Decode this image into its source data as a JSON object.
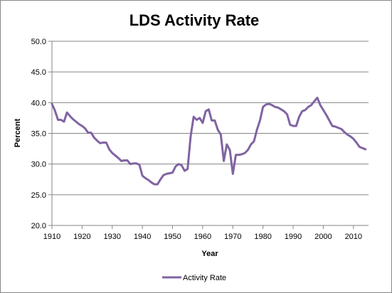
{
  "chart_data": {
    "type": "line",
    "title": "LDS Activity Rate",
    "xlabel": "Year",
    "ylabel": "Percent",
    "xlim": [
      1910,
      2015
    ],
    "ylim": [
      20,
      50
    ],
    "xticks": [
      "1910",
      "1920",
      "1930",
      "1940",
      "1950",
      "1960",
      "1970",
      "1980",
      "1990",
      "2000",
      "2010"
    ],
    "yticks": [
      "20.0",
      "25.0",
      "30.0",
      "35.0",
      "40.0",
      "45.0",
      "50.0"
    ],
    "grid": true,
    "legend": "bottom",
    "series": [
      {
        "name": "Activity Rate",
        "color": "#8064A2",
        "x": [
          1910,
          1911,
          1912,
          1913,
          1914,
          1915,
          1916,
          1917,
          1918,
          1919,
          1920,
          1921,
          1922,
          1923,
          1924,
          1925,
          1926,
          1927,
          1928,
          1929,
          1930,
          1931,
          1932,
          1933,
          1934,
          1935,
          1936,
          1937,
          1938,
          1939,
          1940,
          1941,
          1942,
          1943,
          1944,
          1945,
          1946,
          1947,
          1948,
          1949,
          1950,
          1951,
          1952,
          1953,
          1954,
          1955,
          1956,
          1957,
          1958,
          1959,
          1960,
          1961,
          1962,
          1963,
          1964,
          1965,
          1966,
          1967,
          1968,
          1969,
          1970,
          1971,
          1972,
          1973,
          1974,
          1975,
          1976,
          1977,
          1978,
          1979,
          1980,
          1981,
          1982,
          1983,
          1984,
          1985,
          1986,
          1987,
          1988,
          1989,
          1990,
          1991,
          1992,
          1993,
          1994,
          1995,
          1996,
          1997,
          1998,
          1999,
          2000,
          2001,
          2002,
          2003,
          2004,
          2005,
          2006,
          2007,
          2008,
          2009,
          2010,
          2011,
          2012,
          2013,
          2014
        ],
        "values": [
          39.8,
          38.7,
          37.2,
          37.2,
          36.9,
          38.4,
          37.8,
          37.3,
          36.9,
          36.5,
          36.2,
          35.8,
          35.1,
          35.1,
          34.3,
          33.8,
          33.4,
          33.5,
          33.5,
          32.4,
          31.8,
          31.4,
          31.0,
          30.5,
          30.6,
          30.6,
          30.0,
          30.1,
          30.1,
          29.9,
          28.1,
          27.7,
          27.4,
          27.0,
          26.7,
          26.7,
          27.5,
          28.2,
          28.4,
          28.5,
          28.6,
          29.6,
          30.0,
          29.8,
          28.9,
          29.2,
          34.5,
          37.7,
          37.2,
          37.5,
          36.7,
          38.6,
          38.9,
          37.1,
          37.1,
          35.6,
          34.8,
          30.5,
          33.2,
          32.3,
          28.4,
          31.5,
          31.5,
          31.6,
          31.8,
          32.3,
          33.2,
          33.7,
          35.6,
          37.1,
          39.3,
          39.7,
          39.8,
          39.6,
          39.3,
          39.2,
          38.9,
          38.6,
          38.1,
          36.4,
          36.2,
          36.2,
          37.7,
          38.6,
          38.8,
          39.3,
          39.6,
          40.2,
          40.8,
          39.6,
          38.8,
          38.0,
          37.1,
          36.2,
          36.1,
          35.9,
          35.7,
          35.2,
          34.8,
          34.5,
          34.1,
          33.5,
          32.8,
          32.6,
          32.4
        ]
      }
    ]
  }
}
